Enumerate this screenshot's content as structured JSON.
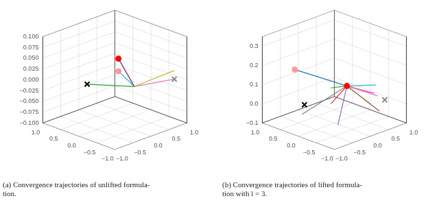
{
  "chart_data": [
    {
      "type": "line3d",
      "title": "(a) Convergence trajectories of unlifted formula-\ntion.",
      "xlim": [
        -1.0,
        1.0
      ],
      "ylim": [
        -1.0,
        1.0
      ],
      "zlim": [
        -0.1,
        0.1
      ],
      "xticks": [
        {
          "value": -1.0,
          "label": "−1.0"
        },
        {
          "value": -0.5,
          "label": "−0.5"
        },
        {
          "value": 0.0,
          "label": "0.0"
        },
        {
          "value": 0.5,
          "label": "0.5"
        },
        {
          "value": 1.0,
          "label": "1.0"
        }
      ],
      "yticks": [
        {
          "value": -1.0,
          "label": "−1.0"
        },
        {
          "value": -0.5,
          "label": "−0.5"
        },
        {
          "value": 0.0,
          "label": "0.0"
        },
        {
          "value": 0.5,
          "label": "0.5"
        },
        {
          "value": 1.0,
          "label": "1.0"
        }
      ],
      "zticks": [
        {
          "value": -0.1,
          "label": "−0.100"
        },
        {
          "value": -0.075,
          "label": "−0.075"
        },
        {
          "value": -0.05,
          "label": "−0.050"
        },
        {
          "value": -0.025,
          "label": "−0.025"
        },
        {
          "value": 0.0,
          "label": "0.000"
        },
        {
          "value": 0.025,
          "label": "0.025"
        },
        {
          "value": 0.05,
          "label": "0.050"
        },
        {
          "value": 0.075,
          "label": "0.075"
        },
        {
          "value": 0.1,
          "label": "0.100"
        }
      ],
      "grid": true,
      "series": [
        {
          "type": "line",
          "color": "#2ca02c",
          "values": [
            [
              -0.55,
              0.22,
              0.0
            ],
            [
              0.02,
              -0.52,
              0.0
            ]
          ]
        },
        {
          "type": "line",
          "color": "#9467bd",
          "values": [
            [
              0.85,
              0.75,
              0.0
            ],
            [
              0.02,
              -0.52,
              0.0
            ]
          ]
        },
        {
          "type": "line",
          "color": "#d62728",
          "values": [
            [
              0.85,
              0.75,
              0.0
            ],
            [
              0.02,
              -0.52,
              0.0
            ]
          ]
        },
        {
          "type": "line",
          "color": "#8c564b",
          "values": [
            [
              0.85,
              0.75,
              0.0
            ],
            [
              0.02,
              -0.52,
              0.0
            ]
          ]
        },
        {
          "type": "line",
          "color": "#1f77b4",
          "values": [
            [
              0.85,
              0.75,
              0.0
            ],
            [
              0.02,
              -0.52,
              0.0
            ]
          ]
        },
        {
          "type": "line",
          "color": "#bcbd22",
          "values": [
            [
              0.85,
              -0.8,
              0.02
            ],
            [
              0.02,
              -0.52,
              0.0
            ]
          ]
        },
        {
          "type": "line",
          "color": "#e377c2",
          "values": [
            [
              0.85,
              -0.8,
              0.0
            ],
            [
              0.02,
              -0.52,
              0.0
            ]
          ]
        },
        {
          "type": "line",
          "color": "#17becf",
          "values": [
            [
              -0.85,
              -0.95,
              0.075
            ],
            [
              0.02,
              -0.52,
              0.0
            ]
          ]
        },
        {
          "type": "scatter",
          "marker": "circle",
          "color": "red",
          "values": [
            [
              0.85,
              0.75,
              0.0
            ]
          ]
        },
        {
          "type": "scatter",
          "marker": "circle",
          "color": "#ff9999",
          "values": [
            [
              -0.85,
              -0.95,
              0.075
            ]
          ]
        },
        {
          "type": "scatter",
          "marker": "x",
          "color": "black",
          "values": [
            [
              -0.55,
              0.22,
              0.0
            ]
          ]
        },
        {
          "type": "scatter",
          "marker": "x",
          "color": "#888888",
          "values": [
            [
              0.85,
              -0.8,
              0.0
            ]
          ]
        }
      ]
    },
    {
      "type": "line3d",
      "title": "(b) Convergence trajectories of lifted formula-\ntion with l = 3.",
      "xlim": [
        -1.0,
        1.0
      ],
      "ylim": [
        -1.0,
        1.0
      ],
      "zlim": [
        -0.1,
        0.35
      ],
      "xticks": [
        {
          "value": -1.0,
          "label": "−1.0"
        },
        {
          "value": -0.5,
          "label": "−0.5"
        },
        {
          "value": 0.0,
          "label": "0.0"
        },
        {
          "value": 0.5,
          "label": "0.5"
        },
        {
          "value": 1.0,
          "label": "1.0"
        }
      ],
      "yticks": [
        {
          "value": -1.0,
          "label": "−1.0"
        },
        {
          "value": -0.5,
          "label": "−0.5"
        },
        {
          "value": 0.0,
          "label": "0.0"
        },
        {
          "value": 0.5,
          "label": "0.5"
        },
        {
          "value": 1.0,
          "label": "1.0"
        }
      ],
      "zticks": [
        {
          "value": -0.1,
          "label": "−0.1"
        },
        {
          "value": 0.0,
          "label": "0.0"
        },
        {
          "value": 0.1,
          "label": "0.1"
        },
        {
          "value": 0.2,
          "label": "0.2"
        },
        {
          "value": 0.3,
          "label": "0.3"
        }
      ],
      "grid": true,
      "series": [
        {
          "type": "line",
          "color": "#1f77b4",
          "values": [
            [
              -0.85,
              0.25,
              0.22
            ],
            [
              0.85,
              0.5,
              0.0
            ]
          ]
        },
        {
          "type": "line",
          "color": "#17becf",
          "values": [
            [
              0.2,
              -0.95,
              0.15
            ],
            [
              0.85,
              0.5,
              0.0
            ]
          ]
        },
        {
          "type": "line",
          "color": "#2ca02c",
          "values": [
            [
              0.55,
              0.65,
              0.0
            ],
            [
              0.85,
              0.5,
              0.0
            ]
          ]
        },
        {
          "type": "line",
          "color": "#d62728",
          "values": [
            [
              -0.05,
              0.05,
              0.0
            ],
            [
              0.85,
              0.5,
              0.0
            ]
          ]
        },
        {
          "type": "line",
          "color": "#9467bd",
          "values": [
            [
              -0.75,
              -0.85,
              0.0
            ],
            [
              0.85,
              0.5,
              0.0
            ]
          ]
        },
        {
          "type": "line",
          "color": "#8c564b",
          "values": [
            [
              0.35,
              -0.9,
              0.0
            ],
            [
              0.85,
              0.5,
              0.0
            ]
          ]
        },
        {
          "type": "line",
          "color": "#e377c2",
          "values": [
            [
              0.9,
              -0.3,
              0.0
            ],
            [
              0.85,
              0.5,
              0.0
            ]
          ]
        },
        {
          "type": "line",
          "color": "#7f7f7f",
          "values": [
            [
              -0.85,
              0.05,
              0.0
            ],
            [
              0.85,
              0.5,
              0.0
            ]
          ]
        },
        {
          "type": "line",
          "color": "#bcbd22",
          "values": [
            [
              0.5,
              -0.5,
              0.0
            ],
            [
              0.85,
              0.5,
              0.0
            ]
          ]
        },
        {
          "type": "line",
          "color": "#ff7f0e",
          "values": [
            [
              0.9,
              0.05,
              0.0
            ],
            [
              0.85,
              0.5,
              0.0
            ]
          ]
        },
        {
          "type": "line",
          "color": "#ff00ff",
          "values": [
            [
              0.95,
              -0.15,
              0.0
            ],
            [
              0.85,
              0.5,
              0.0
            ]
          ]
        },
        {
          "type": "scatter",
          "marker": "circle",
          "color": "red",
          "values": [
            [
              0.85,
              0.5,
              0.0
            ]
          ]
        },
        {
          "type": "scatter",
          "marker": "circle",
          "color": "#ff9999",
          "values": [
            [
              -0.85,
              0.25,
              0.22
            ]
          ]
        },
        {
          "type": "scatter",
          "marker": "x",
          "color": "black",
          "values": [
            [
              -0.45,
              0.38,
              0.0
            ]
          ]
        },
        {
          "type": "scatter",
          "marker": "x",
          "color": "#888888",
          "values": [
            [
              0.85,
              -0.55,
              0.0
            ]
          ]
        }
      ]
    }
  ]
}
